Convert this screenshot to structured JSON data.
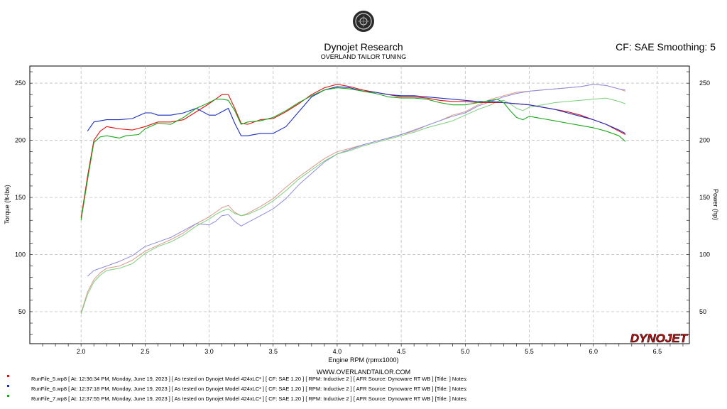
{
  "header": {
    "title": "Dynojet Research",
    "subtitle": "OVERLAND TAILOR TUNING",
    "cf_info": "CF: SAE Smoothing: 5"
  },
  "website": "WWW.OVERLANDTAILOR.COM",
  "brand_logo_text": "DYNOJET",
  "colors": {
    "run5": "#e01010",
    "run6": "#1a2fbf",
    "run7": "#1aa81a",
    "run5_power": "#d89a8a",
    "run6_power": "#8c8cdc",
    "run7_power": "#7ccf7c",
    "grid": "#b4b4b4"
  },
  "chart_data": {
    "type": "line",
    "xlabel": "Engine RPM (rpmx1000)",
    "ylabel_left": "Torque (ft-lbs)",
    "ylabel_right": "Power (hp)",
    "xlim": [
      1.6,
      6.75
    ],
    "ylim": [
      22,
      265
    ],
    "x_ticks": [
      "2.0",
      "2.5",
      "3.0",
      "3.5",
      "4.0",
      "4.5",
      "5.0",
      "5.5",
      "6.0",
      "6.5"
    ],
    "y_ticks_left": [
      "50",
      "100",
      "150",
      "200",
      "250"
    ],
    "y_ticks_right": [
      "50",
      "100",
      "150",
      "200",
      "250"
    ],
    "grid": true,
    "series": [
      {
        "name": "RunFile_5.wp8",
        "kind": "torque",
        "x": [
          2.0,
          2.05,
          2.1,
          2.15,
          2.2,
          2.25,
          2.3,
          2.4,
          2.5,
          2.6,
          2.7,
          2.8,
          2.9,
          3.0,
          3.05,
          3.1,
          3.15,
          3.2,
          3.25,
          3.3,
          3.4,
          3.5,
          3.6,
          3.7,
          3.8,
          3.9,
          4.0,
          4.1,
          4.2,
          4.3,
          4.4,
          4.5,
          4.6,
          4.7,
          4.8,
          4.9,
          5.0,
          5.1,
          5.2,
          5.3,
          5.4,
          5.5,
          5.6,
          5.7,
          5.8,
          5.9,
          6.0,
          6.1,
          6.2,
          6.25
        ],
        "y": [
          132,
          168,
          200,
          208,
          212,
          211,
          210,
          209,
          212,
          216,
          216,
          218,
          225,
          232,
          236,
          240,
          240,
          228,
          215,
          214,
          218,
          219,
          225,
          232,
          240,
          246,
          249,
          247,
          244,
          242,
          240,
          238,
          238,
          237,
          235,
          234,
          234,
          233,
          233,
          233,
          232,
          231,
          229,
          227,
          225,
          222,
          218,
          214,
          208,
          205
        ]
      },
      {
        "name": "RunFile_6.wp8",
        "kind": "torque",
        "x": [
          2.05,
          2.1,
          2.2,
          2.3,
          2.4,
          2.5,
          2.55,
          2.6,
          2.7,
          2.8,
          2.9,
          3.0,
          3.05,
          3.1,
          3.15,
          3.2,
          3.25,
          3.3,
          3.4,
          3.5,
          3.6,
          3.7,
          3.8,
          3.9,
          4.0,
          4.1,
          4.2,
          4.3,
          4.4,
          4.5,
          4.6,
          4.7,
          4.8,
          4.9,
          5.0,
          5.1,
          5.2,
          5.3,
          5.4,
          5.5,
          5.6,
          5.7,
          5.8,
          5.9,
          6.0,
          6.1,
          6.2,
          6.25
        ],
        "y": [
          208,
          216,
          218,
          218,
          219,
          224,
          224,
          222,
          222,
          224,
          228,
          222,
          222,
          225,
          228,
          215,
          204,
          204,
          206,
          206,
          212,
          225,
          238,
          244,
          247,
          246,
          243,
          242,
          240,
          239,
          239,
          238,
          237,
          236,
          235,
          234,
          234,
          233,
          232,
          231,
          229,
          227,
          224,
          221,
          218,
          214,
          209,
          206
        ]
      },
      {
        "name": "RunFile_7.wp8",
        "kind": "torque",
        "x": [
          2.0,
          2.05,
          2.1,
          2.15,
          2.2,
          2.3,
          2.35,
          2.45,
          2.5,
          2.6,
          2.7,
          2.8,
          2.9,
          3.0,
          3.05,
          3.1,
          3.15,
          3.2,
          3.25,
          3.3,
          3.4,
          3.5,
          3.6,
          3.7,
          3.8,
          3.9,
          4.0,
          4.1,
          4.2,
          4.3,
          4.4,
          4.5,
          4.6,
          4.7,
          4.8,
          4.9,
          5.0,
          5.1,
          5.2,
          5.25,
          5.3,
          5.35,
          5.4,
          5.45,
          5.5,
          5.6,
          5.7,
          5.8,
          5.9,
          6.0,
          6.1,
          6.2,
          6.25
        ],
        "y": [
          130,
          165,
          198,
          203,
          204,
          202,
          204,
          205,
          210,
          215,
          214,
          220,
          228,
          233,
          236,
          236,
          235,
          226,
          214,
          216,
          217,
          220,
          226,
          233,
          239,
          244,
          246,
          245,
          243,
          241,
          238,
          237,
          237,
          236,
          233,
          231,
          231,
          233,
          235,
          236,
          233,
          226,
          220,
          218,
          221,
          219,
          217,
          215,
          213,
          211,
          208,
          204,
          199
        ]
      },
      {
        "name": "RunFile_5.wp8",
        "kind": "power",
        "x": [
          2.0,
          2.05,
          2.1,
          2.15,
          2.2,
          2.3,
          2.4,
          2.5,
          2.6,
          2.7,
          2.8,
          2.9,
          3.0,
          3.05,
          3.1,
          3.15,
          3.2,
          3.25,
          3.3,
          3.4,
          3.5,
          3.6,
          3.7,
          3.8,
          3.9,
          4.0,
          4.1,
          4.2,
          4.3,
          4.4,
          4.5,
          4.6,
          4.7,
          4.8,
          4.9,
          5.0,
          5.1,
          5.2,
          5.3,
          5.4,
          5.5,
          5.6,
          5.7,
          5.8,
          5.9,
          6.0,
          6.1,
          6.2,
          6.25
        ],
        "y": [
          49,
          67,
          78,
          84,
          88,
          90,
          95,
          103,
          108,
          113,
          119,
          127,
          133,
          137,
          141,
          143,
          137,
          134,
          136,
          142,
          149,
          159,
          168,
          176,
          184,
          190,
          193,
          196,
          199,
          202,
          205,
          208,
          213,
          217,
          222,
          225,
          231,
          236,
          239,
          242,
          243,
          244,
          245,
          246,
          247,
          249,
          248,
          245,
          243
        ]
      },
      {
        "name": "RunFile_6.wp8",
        "kind": "power",
        "x": [
          2.05,
          2.1,
          2.2,
          2.3,
          2.4,
          2.5,
          2.6,
          2.7,
          2.8,
          2.9,
          3.0,
          3.05,
          3.1,
          3.15,
          3.2,
          3.25,
          3.3,
          3.4,
          3.5,
          3.6,
          3.7,
          3.8,
          3.9,
          4.0,
          4.1,
          4.2,
          4.3,
          4.4,
          4.5,
          4.6,
          4.7,
          4.8,
          4.9,
          5.0,
          5.1,
          5.2,
          5.3,
          5.4,
          5.5,
          5.6,
          5.7,
          5.8,
          5.9,
          6.0,
          6.1,
          6.2,
          6.25
        ],
        "y": [
          81,
          86,
          90,
          94,
          99,
          107,
          111,
          115,
          121,
          127,
          126,
          129,
          134,
          135,
          129,
          125,
          128,
          134,
          140,
          149,
          161,
          171,
          181,
          188,
          192,
          196,
          199,
          202,
          205,
          209,
          213,
          217,
          221,
          224,
          230,
          234,
          238,
          241,
          243,
          244,
          245,
          246,
          247,
          249,
          248,
          245,
          244
        ]
      },
      {
        "name": "RunFile_7.wp8",
        "kind": "power",
        "x": [
          2.0,
          2.05,
          2.1,
          2.15,
          2.2,
          2.3,
          2.4,
          2.5,
          2.6,
          2.7,
          2.8,
          2.9,
          3.0,
          3.05,
          3.1,
          3.15,
          3.2,
          3.25,
          3.3,
          3.4,
          3.5,
          3.6,
          3.7,
          3.8,
          3.9,
          4.0,
          4.1,
          4.2,
          4.3,
          4.4,
          4.5,
          4.6,
          4.7,
          4.8,
          4.9,
          5.0,
          5.1,
          5.2,
          5.25,
          5.3,
          5.35,
          5.4,
          5.45,
          5.5,
          5.6,
          5.7,
          5.8,
          5.9,
          6.0,
          6.1,
          6.2,
          6.25
        ],
        "y": [
          48,
          65,
          76,
          82,
          86,
          88,
          92,
          101,
          107,
          111,
          117,
          125,
          131,
          135,
          138,
          140,
          136,
          134,
          135,
          140,
          147,
          156,
          166,
          174,
          182,
          188,
          191,
          195,
          198,
          201,
          204,
          207,
          211,
          214,
          217,
          222,
          227,
          231,
          234,
          235,
          232,
          228,
          226,
          229,
          231,
          233,
          234,
          235,
          236,
          237,
          234,
          232
        ]
      }
    ],
    "legend": [
      {
        "color": "#e01010",
        "text": "RunFile_5.wp8 [ At: 12:36:34 PM, Monday, June 19, 2023 ] [ As tested on Dynojet Model 424xLC² ] [ CF: SAE 1.20 ] [ RPM: Inductive 2 ] [ AFR Source: Dynoware RT WB ] [Title: ]  Notes:"
      },
      {
        "color": "#1a2fbf",
        "text": "RunFile_6.wp8 [ At: 12:37:18 PM, Monday, June 19, 2023 ] [ As tested on Dynojet Model 424xLC² ] [ CF: SAE 1.20 ] [ RPM: Inductive 2 ] [ AFR Source: Dynoware RT WB ] [Title: ]  Notes:"
      },
      {
        "color": "#1aa81a",
        "text": "RunFile_7.wp8 [ At: 12:37:55 PM, Monday, June 19, 2023 ] [ As tested on Dynojet Model 424xLC² ] [ CF: SAE 1.20 ] [ RPM: Inductive 2 ] [ AFR Source: Dynoware RT WB ] [Title: ]  Notes:"
      }
    ]
  }
}
